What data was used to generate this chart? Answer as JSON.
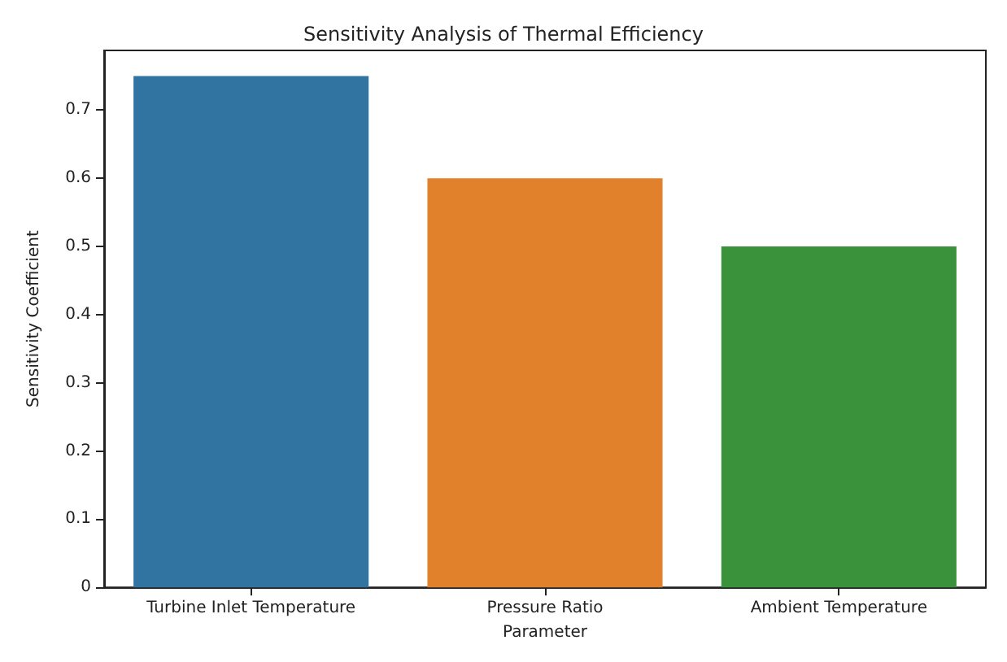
{
  "chart_data": {
    "type": "bar",
    "title": "Sensitivity Analysis of Thermal Efficiency",
    "xlabel": "Parameter",
    "ylabel": "Sensitivity Coefficient",
    "categories": [
      "Turbine Inlet Temperature",
      "Pressure Ratio",
      "Ambient Temperature"
    ],
    "values": [
      0.75,
      0.6,
      0.5
    ],
    "colors": [
      "#3274a1",
      "#e1812c",
      "#3a923a"
    ],
    "ylim": [
      0,
      0.7875
    ],
    "yticks": [
      0,
      0.1,
      0.2,
      0.3,
      0.4,
      0.5,
      0.6,
      0.7
    ],
    "grid": false
  }
}
